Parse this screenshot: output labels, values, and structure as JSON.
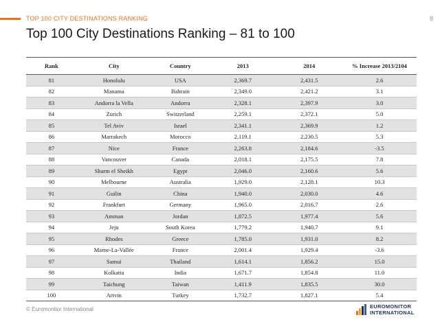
{
  "header": {
    "section_label": "TOP 100 CITY DESTINATIONS RANKING",
    "page_number": "8",
    "accent_color": "#e8731b"
  },
  "title": "Top 100 City Destinations Ranking – 81 to 100",
  "table": {
    "columns": [
      "Rank",
      "City",
      "Country",
      "2013",
      "2014",
      "% Increase 2013/2104"
    ],
    "rows": [
      [
        "81",
        "Honolulu",
        "USA",
        "2,369.7",
        "2,431.5",
        "2.6"
      ],
      [
        "82",
        "Manama",
        "Bahrain",
        "2,349.0",
        "2,421.2",
        "3.1"
      ],
      [
        "83",
        "Andorra la Vella",
        "Andorra",
        "2,328.1",
        "2,397.9",
        "3.0"
      ],
      [
        "84",
        "Zurich",
        "Switzerland",
        "2,259.1",
        "2,372.1",
        "5.0"
      ],
      [
        "85",
        "Tel Aviv",
        "Israel",
        "2,341.1",
        "2,369.9",
        "1.2"
      ],
      [
        "86",
        "Marrakech",
        "Morocco",
        "2,119.1",
        "2,230.5",
        "5.3"
      ],
      [
        "87",
        "Nice",
        "France",
        "2,263.8",
        "2,184.6",
        "-3.5"
      ],
      [
        "88",
        "Vancouver",
        "Canada",
        "2,018.1",
        "2,175.5",
        "7.8"
      ],
      [
        "89",
        "Sharm el Sheikh",
        "Egypt",
        "2,046.0",
        "2,160.6",
        "5.6"
      ],
      [
        "90",
        "Melbourne",
        "Australia",
        "1,929.0",
        "2,128.1",
        "10.3"
      ],
      [
        "91",
        "Guilin",
        "China",
        "1,940.0",
        "2,030.0",
        "4.6"
      ],
      [
        "92",
        "Frankfurt",
        "Germany",
        "1,965.0",
        "2,016.7",
        "2.6"
      ],
      [
        "93",
        "Amman",
        "Jordan",
        "1,872.5",
        "1,977.4",
        "5.6"
      ],
      [
        "94",
        "Jeju",
        "South Korea",
        "1,779.2",
        "1,940.7",
        "9.1"
      ],
      [
        "95",
        "Rhodes",
        "Greece",
        "1,785.0",
        "1,931.0",
        "8.2"
      ],
      [
        "96",
        "Marne-La-Vallée",
        "France",
        "2,001.4",
        "1,929.4",
        "-3.6"
      ],
      [
        "97",
        "Samui",
        "Thailand",
        "1,614.1",
        "1,856.2",
        "15.0"
      ],
      [
        "98",
        "Kolkatta",
        "India",
        "1,671.7",
        "1,854.8",
        "11.0"
      ],
      [
        "99",
        "Taichung",
        "Taiwan",
        "1,411.9",
        "1,835.5",
        "30.0"
      ],
      [
        "100",
        "Artvin",
        "Turkey",
        "1,732.7",
        "1,827.1",
        "5.4"
      ]
    ]
  },
  "footer": {
    "copyright": "© Euromonitor International",
    "logo_line1": "EUROMONITOR",
    "logo_line2": "INTERNATIONAL",
    "logo_icon": "euromonitor-logo-icon",
    "logo_color": "#1c2f5e"
  }
}
